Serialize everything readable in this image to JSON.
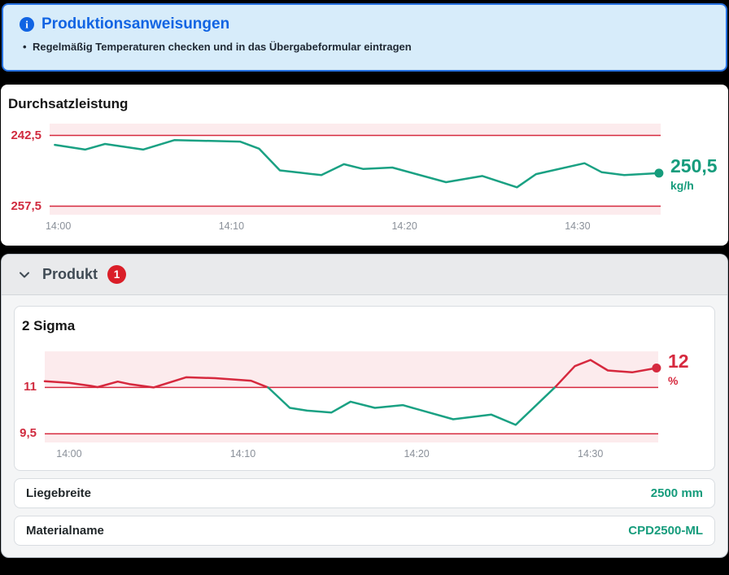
{
  "banner": {
    "icon": "info-icon",
    "title": "Produktionsanweisungen",
    "items": [
      "Regelmäßig Temperaturen checken und in das Übergabeformular eintragen"
    ],
    "accent_color": "#1164e3",
    "background_color": "#d7ecfa",
    "border_color": "#2570e0"
  },
  "chart_data": [
    {
      "type": "line",
      "title": "Durchsatzleistung",
      "unit": "kg/h",
      "current_value": "250,5",
      "current_value_numeric": 250.5,
      "value_color": "#169c7c",
      "line_color": "#1aa183",
      "limit_color": "#d6293e",
      "limit_label_color": "#d02b3f",
      "band_color": "#fcebed",
      "limits": {
        "upper": 242.5,
        "upper_label": "242,5",
        "lower": 257.5,
        "lower_label": "257,5"
      },
      "y_domain": [
        240,
        259.3
      ],
      "y_inverted": true,
      "x_domain": [
        -0.5,
        34.8
      ],
      "grid": false,
      "x_ticks": [
        {
          "t": 0,
          "label": "14:00"
        },
        {
          "t": 10,
          "label": "14:10"
        },
        {
          "t": 20,
          "label": "14:20"
        },
        {
          "t": 30,
          "label": "14:30"
        }
      ],
      "x": [
        -0.2,
        1.55,
        2.7,
        4.9,
        6.7,
        10.5,
        11.6,
        12.8,
        14,
        15.2,
        16.5,
        17.6,
        19.3,
        22.4,
        24.5,
        26.5,
        27.6,
        30.4,
        31.4,
        32.7,
        34.7
      ],
      "y": [
        244.5,
        245.5,
        244.3,
        245.5,
        243.5,
        243.8,
        245.3,
        249.9,
        250.4,
        250.9,
        248.6,
        249.6,
        249.3,
        252.4,
        251.1,
        253.5,
        250.7,
        248.4,
        250.3,
        250.9,
        250.5
      ]
    },
    {
      "type": "line",
      "title": "2 Sigma",
      "unit": "%",
      "current_value": "12",
      "current_value_numeric": 12,
      "value_color": "#d6293e",
      "line_color": "#1aa183",
      "color_rule": {
        "threshold": 11,
        "above": "#d6293e",
        "below": "#1aa183"
      },
      "limit_color": "#d6293e",
      "limit_label_color": "#d02b3f",
      "band_color": "#fcebed",
      "limits": {
        "upper": 11,
        "upper_label": "11",
        "lower": 9.5,
        "lower_label": "9,5"
      },
      "y_domain": [
        9.22,
        12.17
      ],
      "y_inverted": false,
      "x_domain": [
        -1.4,
        33.9
      ],
      "grid": false,
      "x_ticks": [
        {
          "t": 0,
          "label": "14:00"
        },
        {
          "t": 10,
          "label": "14:10"
        },
        {
          "t": 20,
          "label": "14:20"
        },
        {
          "t": 30,
          "label": "14:30"
        }
      ],
      "x": [
        -1.4,
        0,
        1.26,
        1.64,
        2.8,
        3.46,
        4.86,
        6.73,
        8.41,
        10.47,
        11.45,
        12.7,
        13.7,
        15.1,
        16.2,
        17.6,
        19.2,
        22.1,
        24.3,
        25.7,
        28,
        29.1,
        30,
        31,
        32.4,
        33.8
      ],
      "y": [
        11.2,
        11.15,
        11.05,
        11.01,
        11.19,
        11.11,
        11,
        11.33,
        11.3,
        11.22,
        11,
        10.34,
        10.25,
        10.19,
        10.54,
        10.34,
        10.43,
        9.97,
        10.12,
        9.79,
        11.03,
        11.69,
        11.89,
        11.55,
        11.49,
        11.63
      ]
    }
  ],
  "produkt_section": {
    "title": "Produkt",
    "badge_count": "1",
    "badge_color": "#da1e28",
    "rows": [
      {
        "label": "Liegebreite",
        "value": "2500 mm"
      },
      {
        "label": "Materialname",
        "value": "CPD2500-ML"
      }
    ]
  }
}
